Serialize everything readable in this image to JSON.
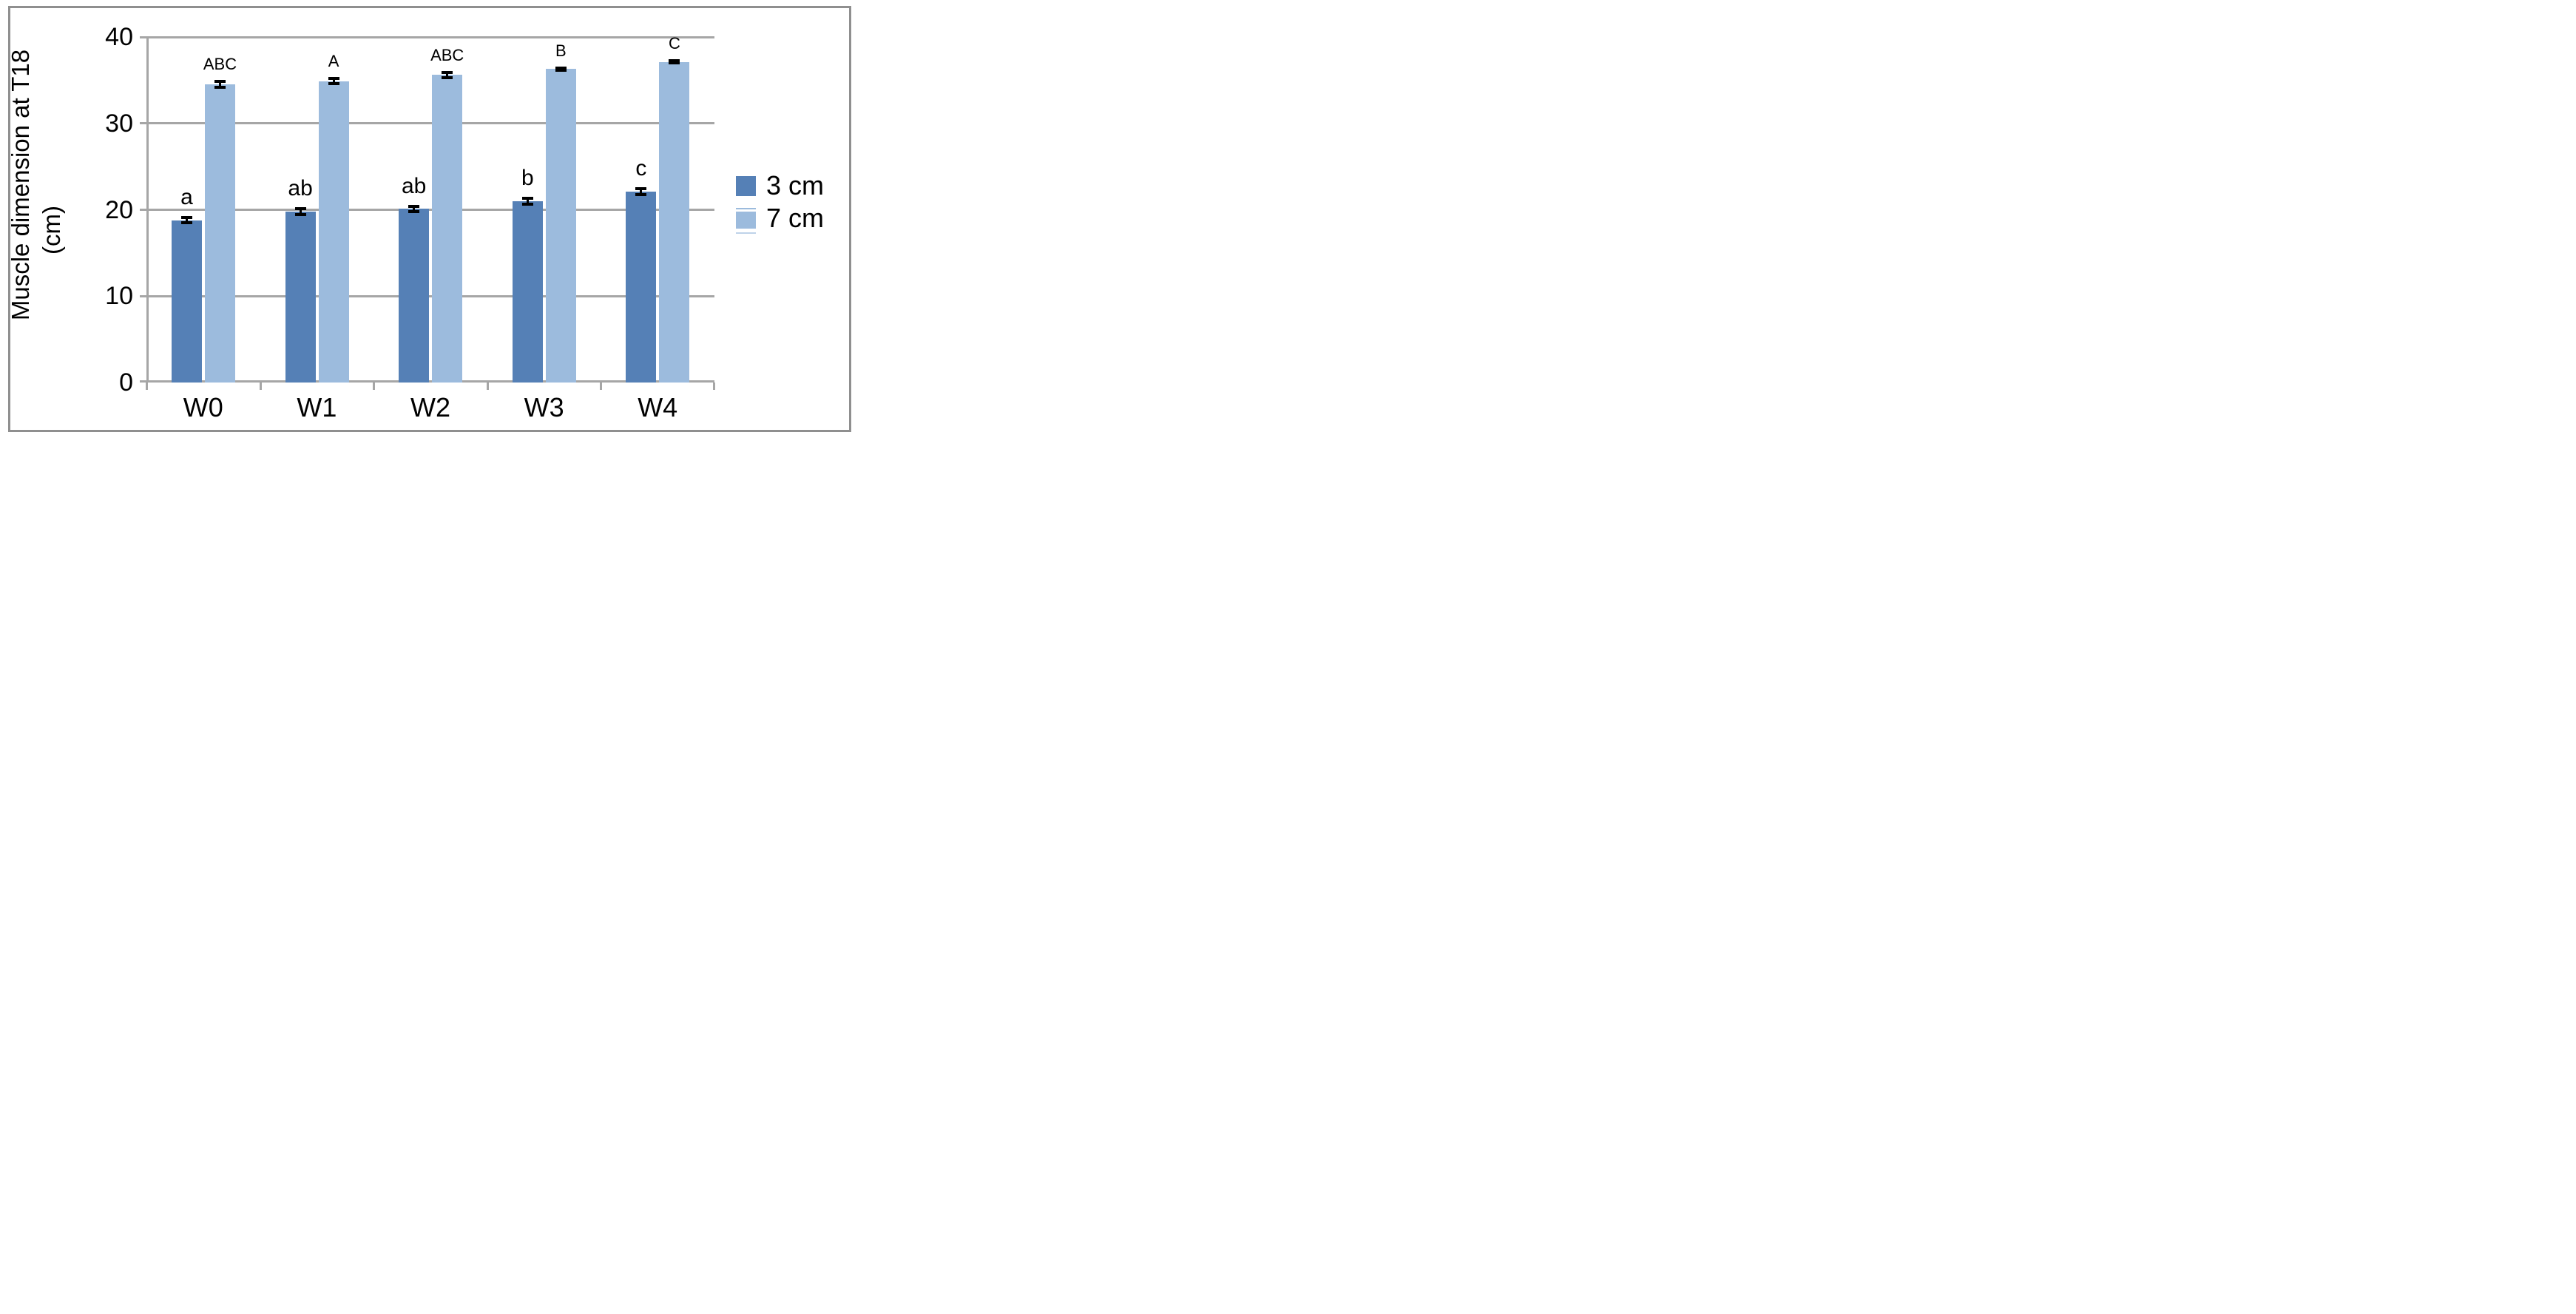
{
  "figure": {
    "background": "#ffffff",
    "border_color": "#8f8f8f"
  },
  "chart_data": {
    "type": "bar",
    "title": "",
    "categories": [
      "W0",
      "W1",
      "W2",
      "W3",
      "W4"
    ],
    "series": [
      {
        "name": "3 cm",
        "color": "#5580b6",
        "values": [
          18.8,
          19.8,
          20.1,
          21.0,
          22.1
        ],
        "errors": [
          0.5,
          0.5,
          0.5,
          0.5,
          0.5
        ],
        "letters": [
          "a",
          "ab",
          "ab",
          "b",
          "c"
        ]
      },
      {
        "name": "7 cm",
        "color": "#9cbbdd",
        "values": [
          34.5,
          34.9,
          35.6,
          36.3,
          37.1
        ],
        "errors": [
          0.5,
          0.5,
          0.5,
          0.3,
          0.3
        ],
        "letters": [
          "ABC",
          "A",
          "ABC",
          "B",
          "C"
        ]
      }
    ],
    "ylabel": {
      "line1": "Muscle dimension at T18",
      "line2": "(cm)"
    },
    "xlabel": "",
    "yticks": [
      0,
      10,
      20,
      30,
      40
    ],
    "ylim": [
      0,
      40
    ],
    "grid": true,
    "gridline_color": "#a6a6a6",
    "error_bar_color": "#000000",
    "legend_position": "right"
  }
}
